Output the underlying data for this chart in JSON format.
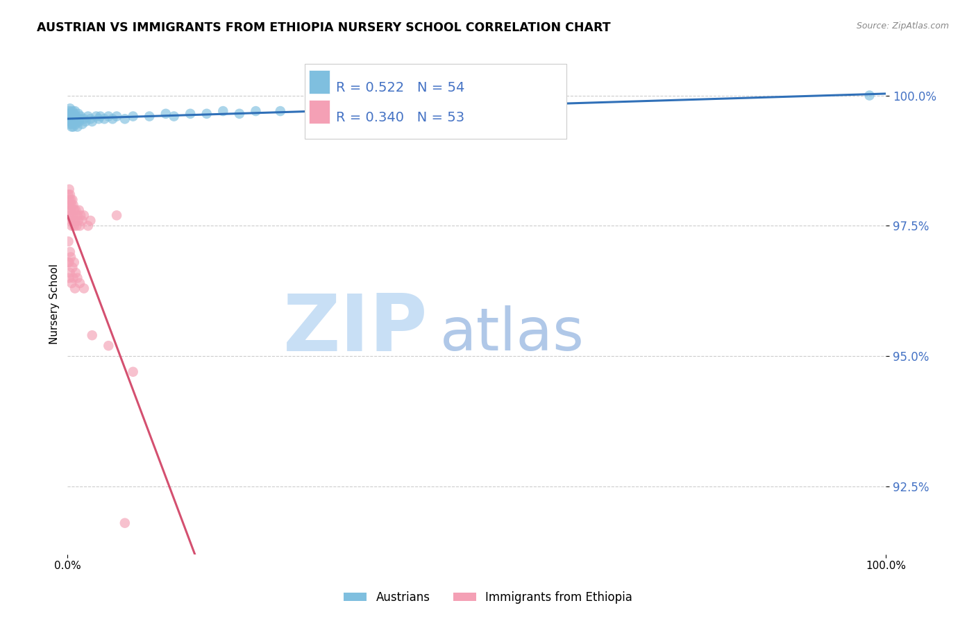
{
  "title": "AUSTRIAN VS IMMIGRANTS FROM ETHIOPIA NURSERY SCHOOL CORRELATION CHART",
  "source": "Source: ZipAtlas.com",
  "ylabel": "Nursery School",
  "yticks": [
    92.5,
    95.0,
    97.5,
    100.0
  ],
  "ytick_labels": [
    "92.5%",
    "95.0%",
    "97.5%",
    "100.0%"
  ],
  "xtick_labels": [
    "0.0%",
    "100.0%"
  ],
  "xrange": [
    0.0,
    1.0
  ],
  "yrange": [
    91.2,
    100.8
  ],
  "legend_line1": "R = 0.522   N = 54",
  "legend_line2": "R = 0.340   N = 53",
  "color_austrians": "#7fbfdf",
  "color_ethiopia": "#f4a0b5",
  "color_line_austrians": "#3070b8",
  "color_line_ethiopia": "#d45070",
  "color_yticks": "#4472c4",
  "watermark_zip": "ZIP",
  "watermark_atlas": "atlas",
  "watermark_color_zip": "#c8dff5",
  "watermark_color_atlas": "#b0c8e8",
  "austrians_x": [
    0.001,
    0.001,
    0.002,
    0.002,
    0.003,
    0.003,
    0.003,
    0.004,
    0.004,
    0.005,
    0.005,
    0.006,
    0.006,
    0.006,
    0.007,
    0.007,
    0.007,
    0.008,
    0.008,
    0.009,
    0.009,
    0.01,
    0.01,
    0.011,
    0.012,
    0.013,
    0.014,
    0.015,
    0.016,
    0.018,
    0.02,
    0.022,
    0.025,
    0.028,
    0.03,
    0.035,
    0.038,
    0.04,
    0.045,
    0.05,
    0.055,
    0.06,
    0.07,
    0.08,
    0.1,
    0.12,
    0.13,
    0.15,
    0.17,
    0.19,
    0.21,
    0.23,
    0.26,
    0.98
  ],
  "austrians_y": [
    99.55,
    99.65,
    99.5,
    99.7,
    99.45,
    99.6,
    99.75,
    99.5,
    99.65,
    99.4,
    99.6,
    99.55,
    99.45,
    99.7,
    99.5,
    99.6,
    99.4,
    99.55,
    99.65,
    99.5,
    99.7,
    99.45,
    99.6,
    99.55,
    99.4,
    99.65,
    99.5,
    99.55,
    99.6,
    99.45,
    99.55,
    99.5,
    99.6,
    99.55,
    99.5,
    99.6,
    99.55,
    99.6,
    99.55,
    99.6,
    99.55,
    99.6,
    99.55,
    99.6,
    99.6,
    99.65,
    99.6,
    99.65,
    99.65,
    99.7,
    99.65,
    99.7,
    99.7,
    100.0
  ],
  "ethiopia_x": [
    0.001,
    0.001,
    0.001,
    0.002,
    0.002,
    0.002,
    0.003,
    0.003,
    0.003,
    0.004,
    0.004,
    0.004,
    0.005,
    0.005,
    0.006,
    0.006,
    0.007,
    0.007,
    0.008,
    0.008,
    0.009,
    0.01,
    0.011,
    0.012,
    0.013,
    0.014,
    0.015,
    0.016,
    0.018,
    0.02,
    0.025,
    0.028,
    0.06,
    0.001,
    0.001,
    0.002,
    0.002,
    0.003,
    0.003,
    0.004,
    0.005,
    0.006,
    0.007,
    0.008,
    0.009,
    0.01,
    0.012,
    0.015,
    0.02,
    0.03,
    0.05,
    0.08,
    0.07
  ],
  "ethiopia_y": [
    97.9,
    98.1,
    97.7,
    98.0,
    97.8,
    98.2,
    97.6,
    97.9,
    98.1,
    97.7,
    98.0,
    97.8,
    97.5,
    97.9,
    97.6,
    98.0,
    97.7,
    97.9,
    97.5,
    97.8,
    97.6,
    97.8,
    97.5,
    97.7,
    97.6,
    97.8,
    97.5,
    97.7,
    97.6,
    97.7,
    97.5,
    97.6,
    97.7,
    96.8,
    97.2,
    96.5,
    96.8,
    97.0,
    96.6,
    96.9,
    96.4,
    96.7,
    96.5,
    96.8,
    96.3,
    96.6,
    96.5,
    96.4,
    96.3,
    95.4,
    95.2,
    94.7,
    91.8
  ]
}
